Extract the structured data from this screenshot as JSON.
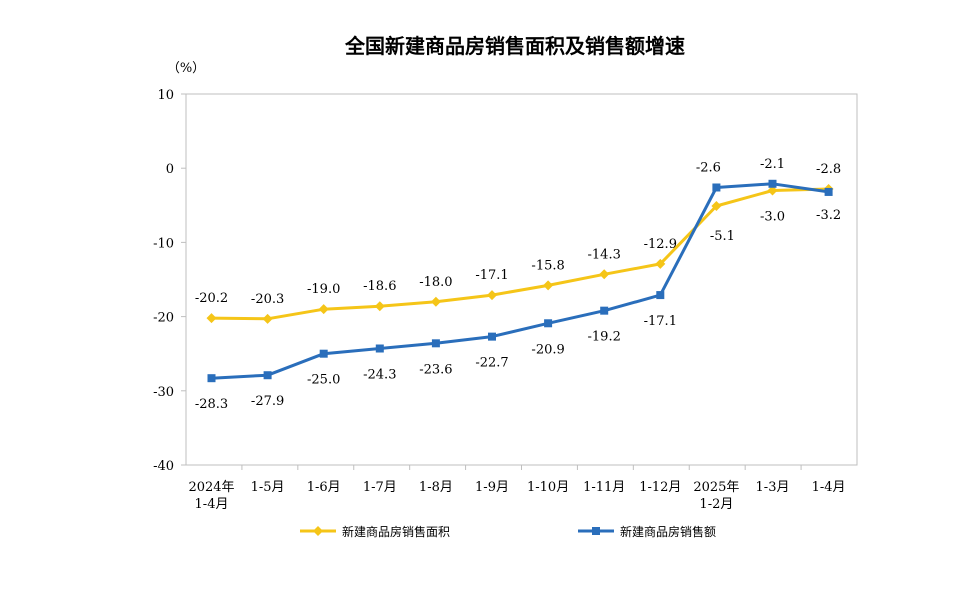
{
  "chart_data": {
    "type": "line",
    "title": "全国新建商品房销售面积及销售额增速",
    "unit_label": "（%）",
    "xlabel": "",
    "ylabel": "",
    "ylim": [
      -40,
      10
    ],
    "yticks": [
      10,
      0,
      -10,
      -20,
      -30,
      -40
    ],
    "categories": [
      [
        "2024年",
        "1-4月"
      ],
      [
        "1-5月"
      ],
      [
        "1-6月"
      ],
      [
        "1-7月"
      ],
      [
        "1-8月"
      ],
      [
        "1-9月"
      ],
      [
        "1-10月"
      ],
      [
        "1-11月"
      ],
      [
        "1-12月"
      ],
      [
        "2025年",
        "1-2月"
      ],
      [
        "1-3月"
      ],
      [
        "1-4月"
      ]
    ],
    "series": [
      {
        "name": "新建商品房销售面积",
        "color": "#F5C518",
        "marker": "diamond",
        "values": [
          -20.2,
          -20.3,
          -19.0,
          -18.6,
          -18.0,
          -17.1,
          -15.8,
          -14.3,
          -12.9,
          -5.1,
          -3.0,
          -2.8
        ],
        "labels": [
          "-20.2",
          "-20.3",
          "-19.0",
          "-18.6",
          "-18.0",
          "-17.1",
          "-15.8",
          "-14.3",
          "-12.9",
          "-5.1",
          "-3.0",
          "-2.8"
        ]
      },
      {
        "name": "新建商品房销售额",
        "color": "#2A6EBB",
        "marker": "square",
        "values": [
          -28.3,
          -27.9,
          -25.0,
          -24.3,
          -23.6,
          -22.7,
          -20.9,
          -19.2,
          -17.1,
          -2.6,
          -2.1,
          -3.2
        ],
        "labels": [
          "-28.3",
          "-27.9",
          "-25.0",
          "-24.3",
          "-23.6",
          "-22.7",
          "-20.9",
          "-19.2",
          "-17.1",
          "-2.6",
          "-2.1",
          "-3.2"
        ]
      }
    ],
    "grid": false,
    "legend_position": "bottom"
  }
}
